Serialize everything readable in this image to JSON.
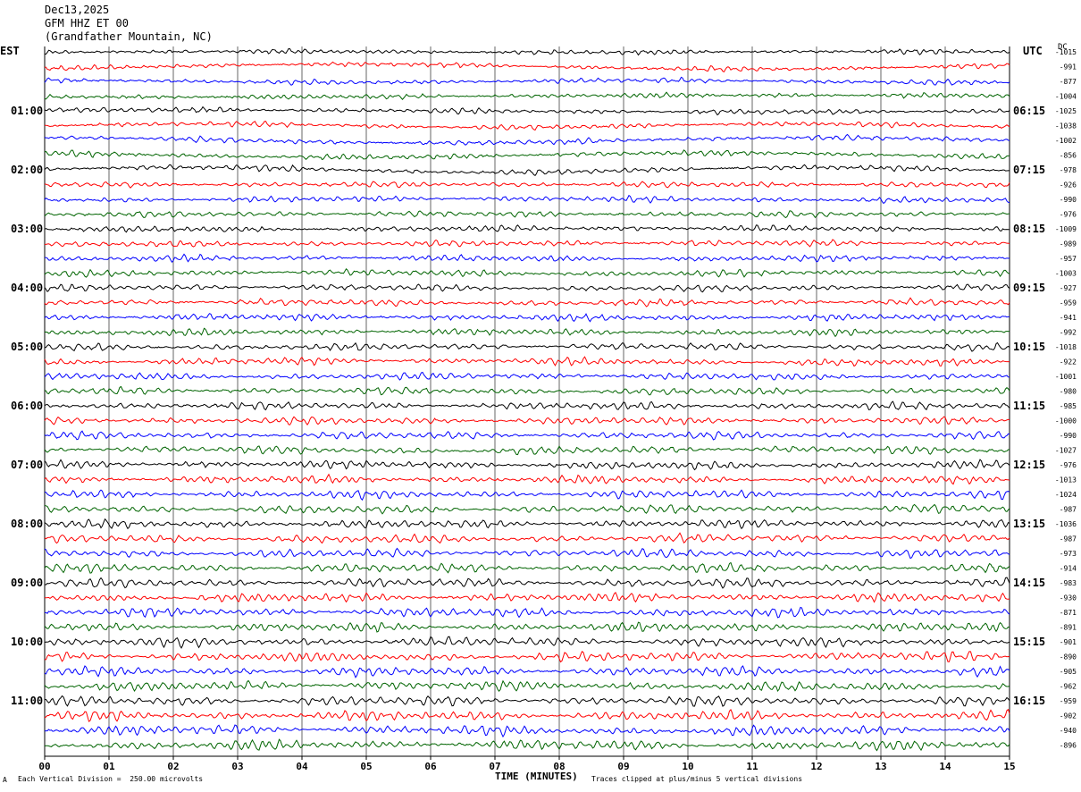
{
  "header": {
    "date": "Dec13,2025",
    "station": "GFM HHZ ET 00",
    "location": "(Grandfather Mountain, NC)"
  },
  "left_axis_label": "EST",
  "right_axis_label": "UTC",
  "dc_label": "DC",
  "footer": {
    "scale_note": "Each Vertical Division =  250.00 microvolts",
    "clip_note": "Traces clipped at plus/minus 5 vertical divisions",
    "corner_mark": "A"
  },
  "chart_data": {
    "type": "line",
    "title": "",
    "xlabel": "TIME (MINUTES)",
    "x_ticks": [
      "00",
      "01",
      "02",
      "03",
      "04",
      "05",
      "06",
      "07",
      "08",
      "09",
      "10",
      "11",
      "12",
      "13",
      "14",
      "15"
    ],
    "xlim": [
      0,
      15
    ],
    "trace_colors": [
      "#000000",
      "#ff0000",
      "#0000ff",
      "#006400"
    ],
    "grid": true,
    "left_hour_labels": [
      "01:00",
      "02:00",
      "03:00",
      "04:00",
      "05:00",
      "06:00",
      "07:00",
      "08:00",
      "09:00",
      "10:00",
      "11:00"
    ],
    "right_hour_labels": [
      "06:15",
      "07:15",
      "08:15",
      "09:15",
      "10:15",
      "11:15",
      "12:15",
      "13:15",
      "14:15",
      "15:15",
      "16:15"
    ],
    "dc_offsets": [
      -1015,
      -991,
      -877,
      -1004,
      -1025,
      -1038,
      -1002,
      -856,
      -978,
      -926,
      -990,
      -976,
      -1009,
      -989,
      -957,
      -1003,
      -927,
      -959,
      -941,
      -992,
      -1018,
      -922,
      -1001,
      -980,
      -985,
      -1000,
      -990,
      -1027,
      -976,
      -1013,
      -1024,
      -987,
      -1036,
      -987,
      -973,
      -914,
      -983,
      -930,
      -871,
      -891,
      -901,
      -890,
      -905,
      -962,
      -959,
      -902,
      -940,
      -896
    ]
  }
}
